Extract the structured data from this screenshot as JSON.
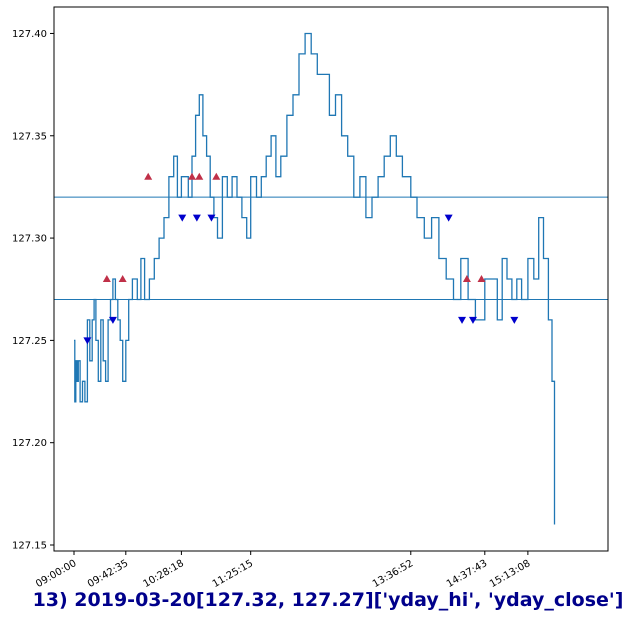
{
  "caption": "13) 2019-03-20[127.32, 127.27]['yday_hi', 'yday_close']",
  "chart_data": {
    "type": "line",
    "title": "",
    "xlabel": "",
    "ylabel": "",
    "ylim": [
      127.15,
      127.41
    ],
    "xlim": [
      "09:00:00",
      "16:19:00"
    ],
    "x_ticks": [
      "09:00:00",
      "09:42:35",
      "10:28:18",
      "11:25:15",
      "13:36:52",
      "14:37:43",
      "15:13:08"
    ],
    "y_ticks": [
      "127.15",
      "127.20",
      "127.25",
      "127.30",
      "127.35",
      "127.40"
    ],
    "grid": false,
    "series": [
      {
        "color": "#1f77b4",
        "points": [
          [
            "09:00:00",
            127.25
          ],
          [
            "09:00:40",
            127.22
          ],
          [
            "09:01:30",
            127.24
          ],
          [
            "09:02:30",
            127.23
          ],
          [
            "09:03:30",
            127.24
          ],
          [
            "09:05:00",
            127.22
          ],
          [
            "09:07:00",
            127.23
          ],
          [
            "09:09:00",
            127.22
          ],
          [
            "09:11:00",
            127.26
          ],
          [
            "09:13:00",
            127.24
          ],
          [
            "09:15:00",
            127.26
          ],
          [
            "09:16:30",
            127.27
          ],
          [
            "09:18:00",
            127.25
          ],
          [
            "09:20:00",
            127.23
          ],
          [
            "09:22:00",
            127.26
          ],
          [
            "09:24:00",
            127.24
          ],
          [
            "09:26:00",
            127.23
          ],
          [
            "09:28:00",
            127.26
          ],
          [
            "09:30:00",
            127.27
          ],
          [
            "09:32:00",
            127.28
          ],
          [
            "09:34:00",
            127.27
          ],
          [
            "09:36:00",
            127.26
          ],
          [
            "09:38:00",
            127.25
          ],
          [
            "09:40:00",
            127.23
          ],
          [
            "09:42:35",
            127.25
          ],
          [
            "09:45:00",
            127.27
          ],
          [
            "09:48:00",
            127.28
          ],
          [
            "09:52:00",
            127.27
          ],
          [
            "09:55:00",
            127.29
          ],
          [
            "09:58:00",
            127.27
          ],
          [
            "10:02:00",
            127.28
          ],
          [
            "10:06:00",
            127.29
          ],
          [
            "10:10:00",
            127.3
          ],
          [
            "10:14:00",
            127.31
          ],
          [
            "10:18:00",
            127.33
          ],
          [
            "10:22:00",
            127.34
          ],
          [
            "10:25:00",
            127.32
          ],
          [
            "10:28:18",
            127.33
          ],
          [
            "10:31:00",
            127.33
          ],
          [
            "10:34:00",
            127.32
          ],
          [
            "10:37:00",
            127.34
          ],
          [
            "10:40:00",
            127.36
          ],
          [
            "10:43:00",
            127.37
          ],
          [
            "10:46:00",
            127.35
          ],
          [
            "10:49:00",
            127.34
          ],
          [
            "10:52:00",
            127.32
          ],
          [
            "10:55:00",
            127.31
          ],
          [
            "10:58:00",
            127.3
          ],
          [
            "11:02:00",
            127.33
          ],
          [
            "11:06:00",
            127.32
          ],
          [
            "11:10:00",
            127.33
          ],
          [
            "11:14:00",
            127.32
          ],
          [
            "11:18:00",
            127.31
          ],
          [
            "11:22:00",
            127.3
          ],
          [
            "11:25:15",
            127.33
          ],
          [
            "11:30:00",
            127.32
          ],
          [
            "11:34:00",
            127.33
          ],
          [
            "11:38:00",
            127.34
          ],
          [
            "11:42:00",
            127.35
          ],
          [
            "11:46:00",
            127.33
          ],
          [
            "11:50:00",
            127.34
          ],
          [
            "11:55:00",
            127.36
          ],
          [
            "12:00:00",
            127.37
          ],
          [
            "12:05:00",
            127.39
          ],
          [
            "12:10:00",
            127.4
          ],
          [
            "12:15:00",
            127.39
          ],
          [
            "12:20:00",
            127.38
          ],
          [
            "12:25:00",
            127.38
          ],
          [
            "12:30:00",
            127.36
          ],
          [
            "12:35:00",
            127.37
          ],
          [
            "12:40:00",
            127.35
          ],
          [
            "12:45:00",
            127.34
          ],
          [
            "12:50:00",
            127.32
          ],
          [
            "12:55:00",
            127.33
          ],
          [
            "13:00:00",
            127.31
          ],
          [
            "13:05:00",
            127.32
          ],
          [
            "13:10:00",
            127.33
          ],
          [
            "13:15:00",
            127.34
          ],
          [
            "13:20:00",
            127.35
          ],
          [
            "13:25:00",
            127.34
          ],
          [
            "13:30:00",
            127.33
          ],
          [
            "13:36:52",
            127.32
          ],
          [
            "13:42:00",
            127.31
          ],
          [
            "13:48:00",
            127.3
          ],
          [
            "13:54:00",
            127.31
          ],
          [
            "14:00:00",
            127.29
          ],
          [
            "14:06:00",
            127.28
          ],
          [
            "14:12:00",
            127.27
          ],
          [
            "14:18:00",
            127.29
          ],
          [
            "14:24:00",
            127.27
          ],
          [
            "14:30:00",
            127.26
          ],
          [
            "14:37:43",
            127.28
          ],
          [
            "14:44:00",
            127.28
          ],
          [
            "14:48:00",
            127.26
          ],
          [
            "14:52:00",
            127.29
          ],
          [
            "14:56:00",
            127.28
          ],
          [
            "15:00:00",
            127.27
          ],
          [
            "15:04:00",
            127.28
          ],
          [
            "15:08:00",
            127.27
          ],
          [
            "15:13:08",
            127.29
          ],
          [
            "15:18:00",
            127.28
          ],
          [
            "15:22:00",
            127.31
          ],
          [
            "15:26:00",
            127.29
          ],
          [
            "15:30:00",
            127.26
          ],
          [
            "15:33:00",
            127.23
          ],
          [
            "15:35:00",
            127.16
          ]
        ]
      }
    ],
    "hlines": [
      {
        "label": "yday_hi",
        "value": 127.32,
        "color": "#1f77b4"
      },
      {
        "label": "yday_close",
        "value": 127.27,
        "color": "#1f77b4"
      }
    ],
    "markers_up": {
      "color": "#c03048",
      "points": [
        [
          "09:27:00",
          127.28
        ],
        [
          "09:40:00",
          127.28
        ],
        [
          "10:01:00",
          127.33
        ],
        [
          "10:37:00",
          127.33
        ],
        [
          "10:43:00",
          127.33
        ],
        [
          "10:57:00",
          127.33
        ],
        [
          "14:23:00",
          127.28
        ],
        [
          "14:35:00",
          127.28
        ]
      ]
    },
    "markers_down": {
      "color": "#0000cc",
      "points": [
        [
          "09:11:00",
          127.25
        ],
        [
          "09:32:00",
          127.26
        ],
        [
          "10:29:00",
          127.31
        ],
        [
          "10:41:00",
          127.31
        ],
        [
          "10:53:00",
          127.31
        ],
        [
          "14:08:00",
          127.31
        ],
        [
          "14:19:00",
          127.26
        ],
        [
          "14:28:00",
          127.26
        ],
        [
          "15:02:00",
          127.26
        ]
      ]
    }
  }
}
